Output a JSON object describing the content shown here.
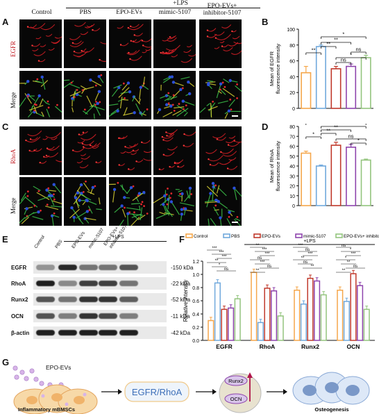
{
  "panels": {
    "A": "A",
    "B": "B",
    "C": "C",
    "D": "D",
    "E": "E",
    "F": "F",
    "G": "G"
  },
  "header_lps": "+LPS",
  "columns": [
    "Control",
    "PBS",
    "EPO-EVs",
    "mimic-5107",
    "EPO-EVs+",
    "inhibitor-5107"
  ],
  "row_labels": {
    "egfr": "EGFR",
    "merge1": "Merge",
    "rhoa": "RhoA",
    "merge2": "Merge"
  },
  "western": {
    "lps": "+LPS",
    "lanes": [
      "Control",
      "PBS",
      "EPO-EVs",
      "mimic-5107",
      "EPO-EVs+",
      "inhibitor-5107"
    ],
    "rows": [
      {
        "label": "EGFR",
        "kda": "-150 kDa"
      },
      {
        "label": "RhoA",
        "kda": "-22 kDa"
      },
      {
        "label": "Runx2",
        "kda": "-52 kDa"
      },
      {
        "label": "OCN",
        "kda": "-11 kDa"
      },
      {
        "label": "β-actin",
        "kda": "-42 kDa"
      }
    ]
  },
  "colors": {
    "control": "#f5a64a",
    "pbs": "#6fa8dc",
    "epo": "#c0392b",
    "mimic": "#8e44ad",
    "inhib": "#93c47d"
  },
  "chart_data": [
    {
      "type": "bar",
      "panel": "B",
      "categories": [
        "Control",
        "PBS",
        "EPO-EVs",
        "mimic-5107",
        "EPO-EVs+ inhibitor-5107"
      ],
      "values": [
        45,
        78,
        50,
        53,
        64
      ],
      "errors": [
        8,
        2,
        3,
        3,
        3
      ],
      "ylabel": "Mean of EGFR fluorescence intensity",
      "ylim": [
        0,
        100
      ],
      "yticks": [
        0,
        20,
        40,
        60,
        80,
        100
      ],
      "significance": [
        "**",
        "**",
        "**",
        "*",
        "ns",
        "*",
        "ns"
      ]
    },
    {
      "type": "bar",
      "panel": "D",
      "categories": [
        "Control",
        "PBS",
        "EPO-EVs",
        "mimic-5107",
        "EPO-EVs+ inhibitor-5107"
      ],
      "values": [
        53,
        40,
        61,
        59,
        46
      ],
      "errors": [
        2,
        1,
        3,
        3,
        1
      ],
      "ylabel": "Mean of RhoA fluorescence intensity",
      "ylim": [
        0,
        80
      ],
      "yticks": [
        0,
        10,
        20,
        30,
        40,
        50,
        60,
        70,
        80
      ],
      "significance": [
        "*",
        "**",
        "**",
        "*",
        "ns",
        "*",
        "*"
      ]
    },
    {
      "type": "bar",
      "panel": "F",
      "categories": [
        "EGFR",
        "RhoA",
        "Runx2",
        "OCN"
      ],
      "series": [
        {
          "name": "Control",
          "values": [
            0.3,
            1.03,
            0.76,
            0.76
          ]
        },
        {
          "name": "PBS",
          "values": [
            0.87,
            0.27,
            0.55,
            0.59
          ]
        },
        {
          "name": "EPO-EVs",
          "values": [
            0.47,
            0.79,
            0.94,
            1.01
          ]
        },
        {
          "name": "mimic-5107",
          "values": [
            0.49,
            0.75,
            0.9,
            0.83
          ]
        },
        {
          "name": "EPO-EVs+ inhibitor-5107",
          "values": [
            0.63,
            0.37,
            0.69,
            0.47
          ]
        }
      ],
      "ylabel": "Relative intensity",
      "ylim": [
        0,
        1.2
      ],
      "yticks": [
        "0.0",
        "0.2",
        "0.4",
        "0.6",
        "0.8",
        "1.0",
        "1.2"
      ],
      "lps": "+LPS",
      "significance_labels": [
        "***",
        "***",
        "***",
        "**",
        "*",
        "ns",
        "**",
        "***",
        "***",
        "ns",
        "***",
        "ns",
        "**",
        "***",
        "ns",
        "***",
        "**",
        "ns",
        "**",
        "ns",
        "*",
        "***",
        "*",
        "**",
        "ns",
        "**"
      ]
    }
  ],
  "schematic": {
    "evs_label": "EPO-EVs",
    "cells_label": "Inflammatory mBMSCs",
    "pathway": "EGFR/RhoA",
    "runx2": "Runx2",
    "ocn": "OCN",
    "outcome": "Osteogenesis"
  }
}
